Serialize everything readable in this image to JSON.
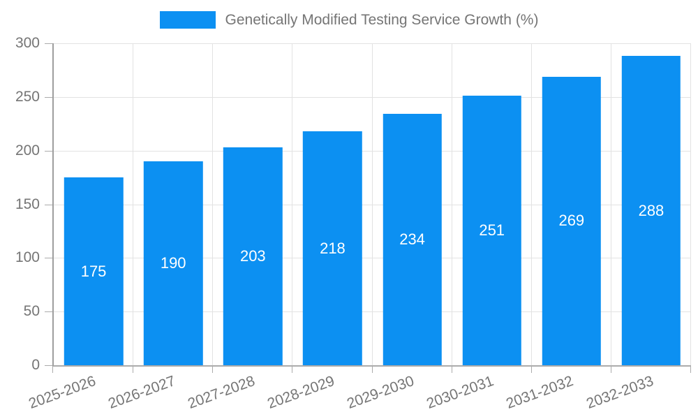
{
  "chart_data": {
    "type": "bar",
    "title": "Genetically Modified Testing Service Growth (%)",
    "categories": [
      "2025-2026",
      "2026-2027",
      "2027-2028",
      "2028-2029",
      "2029-2030",
      "2030-2031",
      "2031-2032",
      "2032-2033"
    ],
    "values": [
      175,
      190,
      203,
      218,
      234,
      251,
      269,
      288
    ],
    "xlabel": "",
    "ylabel": "",
    "ylim": [
      0,
      300
    ],
    "yticks": [
      0,
      50,
      100,
      150,
      200,
      250,
      300
    ],
    "legend_position": "top",
    "grid": "on",
    "x_label_rotation_deg": -20,
    "value_labels": "inside-center-white",
    "colors": {
      "bar": "#0c90f2",
      "value_text": "#ffffff",
      "axis_text": "#757575",
      "grid_line": "#e2e2e2",
      "axis_line": "#ababab"
    }
  }
}
